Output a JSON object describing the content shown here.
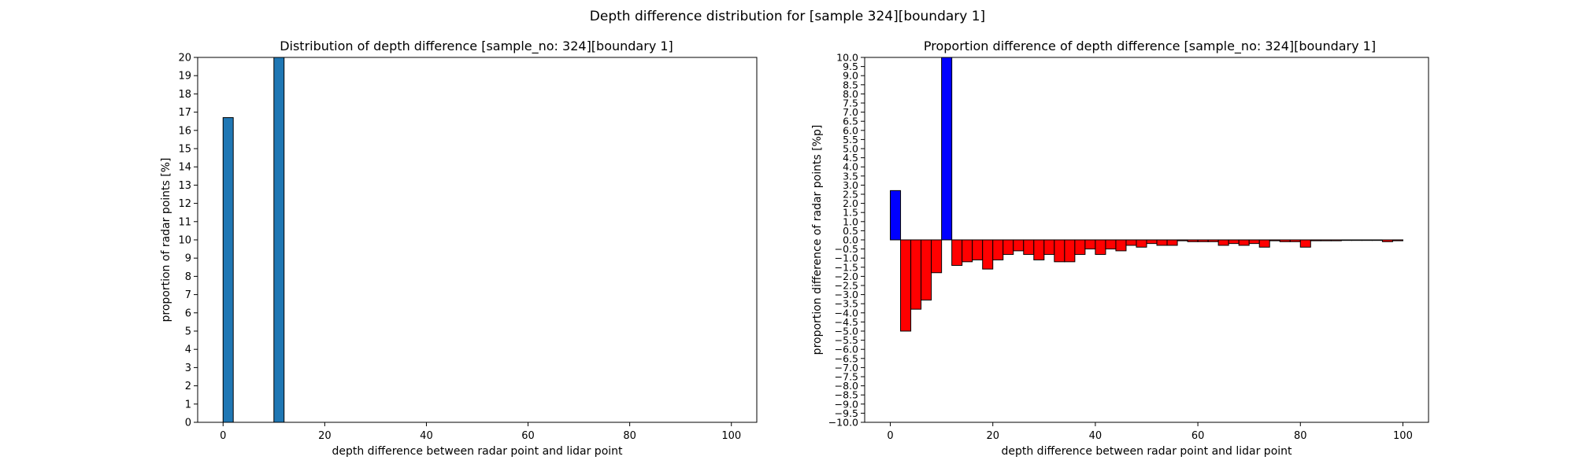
{
  "suptitle": "Depth difference distribution for [sample 324][boundary 1]",
  "chart_data": [
    {
      "type": "bar",
      "title": "Distribution of depth difference [sample_no: 324][boundary 1]",
      "xlabel": "depth difference between radar point and lidar point",
      "ylabel": "proportion of radar points [%]",
      "xlim": [
        -5,
        105
      ],
      "ylim": [
        0,
        20
      ],
      "xticks": [
        0,
        20,
        40,
        60,
        80,
        100
      ],
      "yticks": [
        0,
        1,
        2,
        3,
        4,
        5,
        6,
        7,
        8,
        9,
        10,
        11,
        12,
        13,
        14,
        15,
        16,
        17,
        18,
        19,
        20
      ],
      "bin_width": 2,
      "bin_starts": [
        0,
        10
      ],
      "values": [
        16.7,
        20
      ],
      "color": "#1f77b4"
    },
    {
      "type": "bar",
      "title": "Proportion difference of depth difference [sample_no: 324][boundary 1]",
      "xlabel": "depth difference between radar point and lidar point",
      "ylabel": "proportion difference of radar points [%p]",
      "xlim": [
        -5,
        105
      ],
      "ylim": [
        -10,
        10
      ],
      "xticks": [
        0,
        20,
        40,
        60,
        80,
        100
      ],
      "yticks": [
        -10,
        -9.5,
        -9,
        -8.5,
        -8,
        -7.5,
        -7,
        -6.5,
        -6,
        -5.5,
        -5,
        -4.5,
        -4,
        -3.5,
        -3,
        -2.5,
        -2,
        -1.5,
        -1,
        -0.5,
        0,
        0.5,
        1,
        1.5,
        2,
        2.5,
        3,
        3.5,
        4,
        4.5,
        5,
        5.5,
        6,
        6.5,
        7,
        7.5,
        8,
        8.5,
        9,
        9.5,
        10
      ],
      "bin_width": 2,
      "bin_starts": [
        0,
        2,
        4,
        6,
        8,
        10,
        12,
        14,
        16,
        18,
        20,
        22,
        24,
        26,
        28,
        30,
        32,
        34,
        36,
        38,
        40,
        42,
        44,
        46,
        48,
        50,
        52,
        54,
        56,
        58,
        60,
        62,
        64,
        66,
        68,
        70,
        72,
        74,
        76,
        78,
        80,
        82,
        84,
        86,
        88,
        90,
        92,
        94,
        96,
        98
      ],
      "values": [
        2.7,
        -5.0,
        -3.8,
        -3.3,
        -1.8,
        10,
        -1.4,
        -1.2,
        -1.1,
        -1.6,
        -1.1,
        -0.8,
        -0.6,
        -0.8,
        -1.1,
        -0.8,
        -1.2,
        -1.2,
        -0.8,
        -0.5,
        -0.8,
        -0.5,
        -0.6,
        -0.3,
        -0.4,
        -0.2,
        -0.3,
        -0.3,
        -0.05,
        -0.1,
        -0.1,
        -0.1,
        -0.3,
        -0.2,
        -0.3,
        -0.2,
        -0.4,
        -0.05,
        -0.1,
        -0.1,
        -0.4,
        -0.05,
        -0.05,
        -0.05,
        -0.03,
        -0.03,
        -0.03,
        -0.03,
        -0.1,
        -0.05
      ],
      "positive_color": "#0000ff",
      "negative_color": "#ff0000"
    }
  ]
}
